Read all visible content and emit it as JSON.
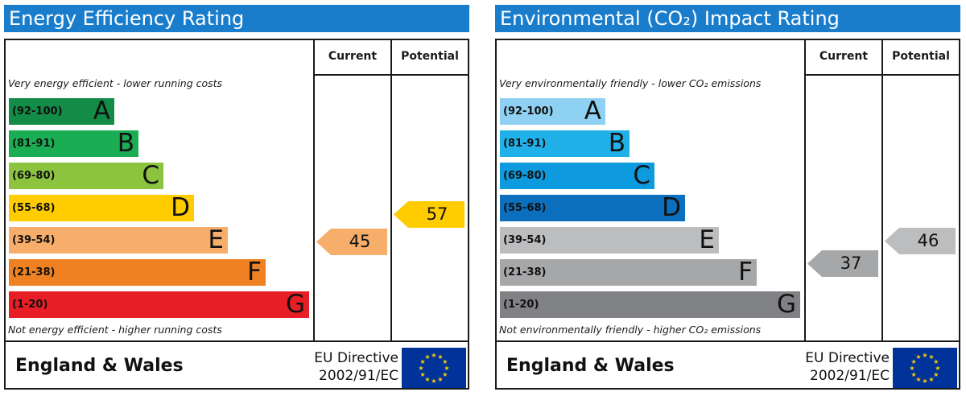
{
  "chart_data": [
    {
      "type": "bar",
      "title": "Energy Efficiency Rating",
      "columns": [
        "Current",
        "Potential"
      ],
      "note_top": "Very energy efficient - lower running costs",
      "note_bottom": "Not energy efficient - higher running costs",
      "bands": [
        {
          "range": "(92-100)",
          "letter": "A",
          "color": "#138c47",
          "text_color": "#111111"
        },
        {
          "range": "(81-91)",
          "letter": "B",
          "color": "#1bad53",
          "text_color": "#111111"
        },
        {
          "range": "(69-80)",
          "letter": "C",
          "color": "#8cc43f",
          "text_color": "#111111"
        },
        {
          "range": "(55-68)",
          "letter": "D",
          "color": "#ffcc00",
          "text_color": "#111111"
        },
        {
          "range": "(39-54)",
          "letter": "E",
          "color": "#f7ae6b",
          "text_color": "#111111"
        },
        {
          "range": "(21-38)",
          "letter": "F",
          "color": "#f08122",
          "text_color": "#111111"
        },
        {
          "range": "(1-20)",
          "letter": "G",
          "color": "#e71e25",
          "text_color": "#111111"
        }
      ],
      "current": {
        "value": "45",
        "band": "E",
        "color": "#f7ae6b"
      },
      "potential": {
        "value": "57",
        "band": "D",
        "color": "#ffcc00"
      },
      "footer": {
        "region": "England & Wales",
        "directive_line1": "EU Directive",
        "directive_line2": "2002/91/EC"
      }
    },
    {
      "type": "bar",
      "title": "Environmental (CO₂) Impact Rating",
      "columns": [
        "Current",
        "Potential"
      ],
      "note_top": "Very environmentally friendly - lower CO₂ emissions",
      "note_bottom": "Not environmentally friendly - higher CO₂ emissions",
      "bands": [
        {
          "range": "(92-100)",
          "letter": "A",
          "color": "#8ed1f3",
          "text_color": "#111111"
        },
        {
          "range": "(81-91)",
          "letter": "B",
          "color": "#21b1ea",
          "text_color": "#111111"
        },
        {
          "range": "(69-80)",
          "letter": "C",
          "color": "#0d9ade",
          "text_color": "#111111"
        },
        {
          "range": "(55-68)",
          "letter": "D",
          "color": "#0b6fbd",
          "text_color": "#111111"
        },
        {
          "range": "(39-54)",
          "letter": "E",
          "color": "#bcbdbf",
          "text_color": "#111111"
        },
        {
          "range": "(21-38)",
          "letter": "F",
          "color": "#a6a7a9",
          "text_color": "#111111"
        },
        {
          "range": "(1-20)",
          "letter": "G",
          "color": "#808184",
          "text_color": "#111111"
        }
      ],
      "current": {
        "value": "37",
        "band": "F",
        "color": "#a6a7a9"
      },
      "potential": {
        "value": "46",
        "band": "E",
        "color": "#bcbdbf"
      },
      "footer": {
        "region": "England & Wales",
        "directive_line1": "EU Directive",
        "directive_line2": "2002/91/EC"
      }
    }
  ]
}
